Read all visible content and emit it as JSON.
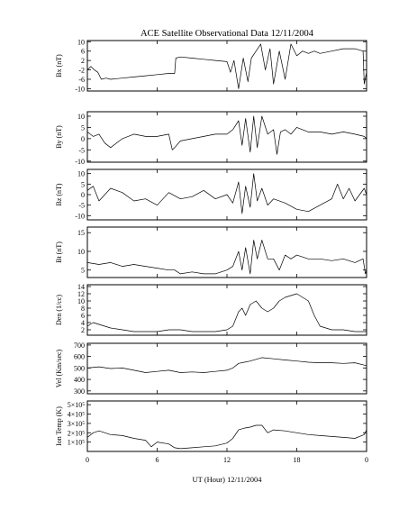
{
  "figure": {
    "title": "ACE Satellite Observational Data   12/11/2004",
    "xlabel": "UT (Hour)   12/11/2004",
    "xticks": [
      "0",
      "6",
      "12",
      "18",
      "0"
    ]
  },
  "chart_data": [
    {
      "type": "line",
      "ylabel": "Bx (nT)",
      "ylim": [
        -11,
        10.5
      ],
      "yticks": [
        10,
        6,
        2,
        -2,
        -6,
        -10
      ],
      "yticklabels": [
        "10",
        "6",
        "2",
        "-2",
        "-6",
        "-10"
      ],
      "x": [
        0,
        0.3,
        0.6,
        0.9,
        1.2,
        1.6,
        2,
        3,
        4,
        5,
        6,
        7,
        7.5,
        7.6,
        8,
        9,
        10,
        11,
        12,
        12.3,
        12.6,
        13,
        13.4,
        13.8,
        14.1,
        14.5,
        14.9,
        15.3,
        15.7,
        16,
        16.5,
        17,
        17.5,
        18,
        18.5,
        19,
        19.5,
        20,
        21,
        22,
        23,
        23.7,
        23.8,
        24
      ],
      "y": [
        -2,
        -0.5,
        -2,
        -3,
        -6,
        -5.5,
        -6,
        -5.5,
        -5,
        -4.5,
        -4,
        -3.5,
        -3.5,
        3,
        3.5,
        3,
        2.5,
        2,
        1.5,
        -3,
        2,
        -10,
        3,
        -7,
        3,
        6,
        9,
        -2,
        7,
        -8,
        6,
        -6,
        9,
        4,
        6,
        5,
        6,
        5,
        6,
        7,
        7,
        6,
        -8,
        -3
      ]
    },
    {
      "type": "line",
      "ylabel": "By (nT)",
      "ylim": [
        -10.5,
        12
      ],
      "yticks": [
        10,
        5,
        0,
        -5,
        -10
      ],
      "yticklabels": [
        "10",
        "5",
        "0",
        "-5",
        "-10"
      ],
      "x": [
        0,
        0.5,
        1,
        1.5,
        2,
        3,
        4,
        5,
        6,
        7,
        7.3,
        7.5,
        8,
        9,
        10,
        11,
        12,
        12.5,
        13,
        13.3,
        13.6,
        14,
        14.3,
        14.6,
        15,
        15.5,
        16,
        16.3,
        16.6,
        17,
        17.5,
        18,
        19,
        20,
        21,
        22,
        23,
        23.8,
        24
      ],
      "y": [
        3,
        1,
        2,
        -2,
        -4,
        0,
        2,
        1,
        1,
        2,
        -5,
        -4,
        -1,
        0,
        1,
        2,
        2,
        4,
        8,
        -3,
        9,
        -6,
        10,
        -4,
        10,
        2,
        4,
        -7,
        3,
        4,
        2,
        5,
        3,
        3,
        2,
        3,
        2,
        1,
        0
      ]
    },
    {
      "type": "line",
      "ylabel": "Bz (nT)",
      "ylim": [
        -12,
        12
      ],
      "yticks": [
        10,
        5,
        0,
        -5,
        -10
      ],
      "yticklabels": [
        "10",
        "5",
        "0",
        "-5",
        "-10"
      ],
      "x": [
        0,
        0.5,
        1,
        2,
        3,
        4,
        5,
        6,
        7,
        8,
        9,
        10,
        11,
        12,
        12.5,
        13,
        13.3,
        13.6,
        14,
        14.3,
        14.6,
        15,
        15.5,
        16,
        17,
        18,
        19,
        20,
        21,
        21.5,
        22,
        22.5,
        23,
        23.8,
        24
      ],
      "y": [
        2,
        4,
        -3,
        3,
        1,
        -3,
        -2,
        -5,
        1,
        -2,
        -1,
        2,
        -2,
        0,
        -4,
        6,
        -9,
        4,
        -6,
        10,
        -3,
        3,
        -5,
        -2,
        -4,
        -7,
        -8,
        -5,
        -2,
        5,
        -2,
        3,
        -3,
        3,
        0
      ]
    },
    {
      "type": "line",
      "ylabel": "Bt (nT)",
      "ylim": [
        3,
        16.5
      ],
      "yticks": [
        15,
        10,
        5
      ],
      "yticklabels": [
        "15",
        "10",
        "5"
      ],
      "x": [
        0,
        1,
        2,
        3,
        4,
        5,
        6,
        7,
        7.5,
        8,
        9,
        10,
        11,
        12,
        12.5,
        13,
        13.3,
        13.6,
        14,
        14.3,
        14.6,
        15,
        15.5,
        16,
        16.5,
        17,
        17.5,
        18,
        19,
        20,
        21,
        22,
        23,
        23.7,
        23.9,
        24
      ],
      "y": [
        7,
        6.5,
        7,
        6,
        6.5,
        6,
        5.5,
        5,
        5,
        4,
        4.5,
        4,
        4,
        5,
        6,
        10,
        5,
        11,
        4,
        13,
        8,
        13,
        8,
        8,
        5,
        9,
        8,
        9,
        8,
        8,
        7.5,
        8,
        7,
        8,
        4,
        5
      ]
    },
    {
      "type": "line",
      "ylabel": "Den (1/cc)",
      "ylim": [
        0.5,
        14.5
      ],
      "yticks": [
        14,
        12,
        10,
        8,
        6,
        4,
        2
      ],
      "yticklabels": [
        "14",
        "12",
        "10",
        "8",
        "6",
        "4",
        "2"
      ],
      "x": [
        0,
        0.5,
        1,
        2,
        3,
        4,
        5,
        6,
        7,
        8,
        9,
        10,
        11,
        12,
        12.5,
        13,
        13.3,
        13.6,
        14,
        14.5,
        15,
        15.5,
        16,
        16.5,
        17,
        17.5,
        18,
        18.5,
        19,
        19.5,
        20,
        21,
        22,
        23,
        24
      ],
      "y": [
        3,
        4,
        3.5,
        2.5,
        2,
        1.5,
        1.5,
        1.5,
        2,
        2,
        1.5,
        1.5,
        1.5,
        2,
        3,
        7,
        8,
        6,
        9,
        10,
        8,
        7,
        8,
        10,
        11,
        11.5,
        12,
        11,
        10,
        6,
        3,
        2,
        2,
        1.5,
        1.5
      ]
    },
    {
      "type": "line",
      "ylabel": "Vel (Km/sec)",
      "ylim": [
        275,
        715
      ],
      "yticks": [
        700,
        600,
        500,
        400,
        300
      ],
      "yticklabels": [
        "700",
        "600",
        "500",
        "400",
        "300"
      ],
      "x": [
        0,
        1,
        2,
        3,
        4,
        5,
        6,
        7,
        8,
        9,
        10,
        11,
        12,
        12.5,
        13,
        13.5,
        14,
        15,
        16,
        17,
        18,
        19,
        20,
        21,
        22,
        23,
        24
      ],
      "y": [
        500,
        510,
        495,
        500,
        480,
        460,
        470,
        480,
        460,
        465,
        460,
        470,
        480,
        500,
        540,
        550,
        560,
        590,
        580,
        570,
        560,
        550,
        545,
        545,
        540,
        545,
        520
      ]
    },
    {
      "type": "line",
      "ylabel": "Ion Temp (K)",
      "ylim": [
        0,
        540000
      ],
      "yticks": [
        500000,
        400000,
        300000,
        200000,
        100000
      ],
      "yticklabels": [
        "5×10⁵",
        "4×10⁵",
        "3×10⁵",
        "2×10⁵",
        "1×10⁵"
      ],
      "x": [
        0,
        0.5,
        1,
        2,
        3,
        4,
        5,
        5.5,
        6,
        7,
        7.5,
        8,
        9,
        10,
        11,
        12,
        12.5,
        13,
        13.5,
        14,
        14.5,
        15,
        15.5,
        16,
        17,
        18,
        19,
        20,
        21,
        22,
        23,
        23.8,
        24
      ],
      "y": [
        150000,
        200000,
        220000,
        180000,
        170000,
        140000,
        120000,
        50000,
        100000,
        80000,
        40000,
        30000,
        40000,
        50000,
        60000,
        90000,
        140000,
        230000,
        250000,
        260000,
        280000,
        280000,
        200000,
        230000,
        220000,
        200000,
        180000,
        170000,
        160000,
        150000,
        140000,
        180000,
        230000
      ]
    }
  ]
}
